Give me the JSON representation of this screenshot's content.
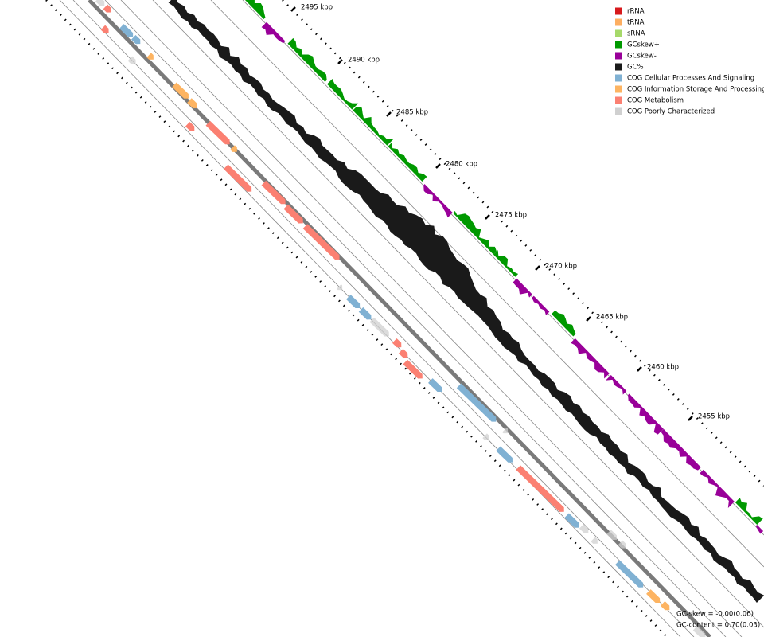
{
  "legend": {
    "items": [
      {
        "label": "rRNA",
        "color": "#d7191c"
      },
      {
        "label": "tRNA",
        "color": "#fdae61"
      },
      {
        "label": "sRNA",
        "color": "#a6d96a"
      },
      {
        "label": "GCskew+",
        "color": "#009900"
      },
      {
        "label": "GCskew-",
        "color": "#990099"
      },
      {
        "label": "GC%",
        "color": "#1a1a1a"
      },
      {
        "label": "COG Cellular Processes And Signaling",
        "color": "#80b1d3"
      },
      {
        "label": "COG Information Storage And Processing",
        "color": "#fdb462"
      },
      {
        "label": "COG Metabolism",
        "color": "#fb8072"
      },
      {
        "label": "COG Poorly Characterized",
        "color": "#d0d0d0"
      }
    ]
  },
  "ticks": {
    "labels": [
      "2495 kbp",
      "2490 kbp",
      "2485 kbp",
      "2480 kbp",
      "2475 kbp",
      "2470 kbp",
      "2465 kbp",
      "2460 kbp",
      "2455 kbp"
    ]
  },
  "stats": {
    "gc_skew": "GC-skew = -0.00(0.06)",
    "gc_content": "GC-content = 0.70(0.03)"
  }
}
